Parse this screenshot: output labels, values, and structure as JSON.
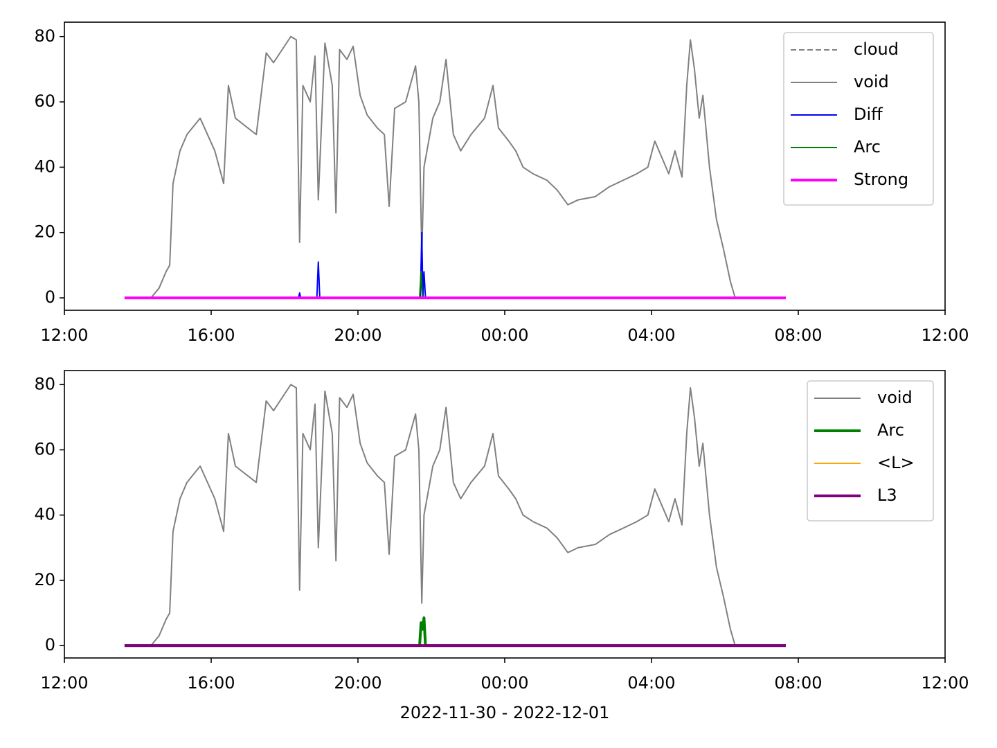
{
  "chart_data": [
    {
      "type": "line",
      "xlim": [
        12,
        36
      ],
      "ylim": [
        -3.8,
        84.4
      ],
      "xticks": [
        {
          "value": 12,
          "label": "12:00"
        },
        {
          "value": 16,
          "label": "16:00"
        },
        {
          "value": 20,
          "label": "20:00"
        },
        {
          "value": 24,
          "label": "00:00"
        },
        {
          "value": 28,
          "label": "04:00"
        },
        {
          "value": 32,
          "label": "08:00"
        },
        {
          "value": 36,
          "label": "12:00"
        }
      ],
      "yticks": [
        0,
        20,
        40,
        60,
        80
      ],
      "legend": "upper right",
      "series": [
        {
          "name": "cloud",
          "color": "#808080",
          "dash": true,
          "linewidth": 2,
          "x": [],
          "values": []
        },
        {
          "name": "void",
          "color": "#808080",
          "dash": false,
          "linewidth": 2,
          "x": [
            14.36,
            14.58,
            14.77,
            14.87,
            14.96,
            15.15,
            15.34,
            15.7,
            16.1,
            16.34,
            16.47,
            16.66,
            17.23,
            17.5,
            17.7,
            18.17,
            18.32,
            18.41,
            18.5,
            18.7,
            18.83,
            18.92,
            19.1,
            19.3,
            19.4,
            19.5,
            19.7,
            19.87,
            20.06,
            20.25,
            20.53,
            20.72,
            20.85,
            21.0,
            21.3,
            21.57,
            21.66,
            21.74,
            21.8,
            22.04,
            22.23,
            22.4,
            22.6,
            22.8,
            23.08,
            23.45,
            23.68,
            23.83,
            24.11,
            24.3,
            24.5,
            24.77,
            25.15,
            25.43,
            25.72,
            26.0,
            26.47,
            26.85,
            27.23,
            27.6,
            27.9,
            28.09,
            28.28,
            28.47,
            28.64,
            28.83,
            28.96,
            29.06,
            29.17,
            29.3,
            29.4,
            29.58,
            29.77,
            29.96,
            30.15,
            30.28
          ],
          "values": [
            0,
            3,
            8,
            10,
            35,
            45,
            50,
            55,
            45,
            35,
            65,
            55,
            50,
            75,
            72,
            80,
            79,
            17,
            65,
            60,
            74,
            30,
            78,
            65,
            26,
            76,
            73,
            77,
            62,
            56,
            52,
            50,
            28,
            58,
            60,
            71,
            60,
            13,
            40,
            55,
            60,
            73,
            50,
            45,
            50,
            55,
            65,
            52,
            48,
            45,
            40,
            38,
            36,
            33,
            28.5,
            30,
            31,
            34,
            36,
            38,
            40,
            48,
            43,
            38,
            45,
            37,
            65,
            79,
            70,
            55,
            62,
            40,
            24,
            15,
            5,
            0
          ]
        },
        {
          "name": "Diff",
          "color": "#0000ff",
          "dash": false,
          "linewidth": 2,
          "x": [
            13.64,
            18.38,
            18.41,
            18.44,
            18.88,
            18.92,
            18.96,
            21.7,
            21.74,
            21.77,
            21.8,
            21.84,
            31.66
          ],
          "values": [
            0,
            0,
            1.5,
            0,
            0,
            11,
            0,
            0,
            20,
            0,
            8,
            0,
            0
          ]
        },
        {
          "name": "Arc",
          "color": "#008000",
          "dash": false,
          "linewidth": 2,
          "x": [
            13.64,
            21.68,
            21.72,
            21.76,
            31.66
          ],
          "values": [
            0,
            0,
            8,
            0,
            0
          ]
        },
        {
          "name": "Strong",
          "color": "#ff00ff",
          "dash": false,
          "linewidth": 4,
          "x": [
            13.64,
            31.66
          ],
          "values": [
            0,
            0
          ]
        }
      ]
    },
    {
      "type": "line",
      "xlim": [
        12,
        36
      ],
      "ylim": [
        -3.8,
        84.3
      ],
      "xticks": [
        {
          "value": 12,
          "label": "12:00"
        },
        {
          "value": 16,
          "label": "16:00"
        },
        {
          "value": 20,
          "label": "20:00"
        },
        {
          "value": 24,
          "label": "00:00"
        },
        {
          "value": 28,
          "label": "04:00"
        },
        {
          "value": 32,
          "label": "08:00"
        },
        {
          "value": 36,
          "label": "12:00"
        }
      ],
      "yticks": [
        0,
        20,
        40,
        60,
        80
      ],
      "x_label": "2022-11-30 - 2022-12-01",
      "legend": "upper right",
      "series": [
        {
          "name": "void",
          "color": "#808080",
          "dash": false,
          "linewidth": 2,
          "x": [
            14.36,
            14.58,
            14.77,
            14.87,
            14.96,
            15.15,
            15.34,
            15.7,
            16.1,
            16.34,
            16.47,
            16.66,
            17.23,
            17.5,
            17.7,
            18.17,
            18.32,
            18.41,
            18.5,
            18.7,
            18.83,
            18.92,
            19.1,
            19.3,
            19.4,
            19.5,
            19.7,
            19.87,
            20.06,
            20.25,
            20.53,
            20.72,
            20.85,
            21.0,
            21.3,
            21.57,
            21.66,
            21.74,
            21.8,
            22.04,
            22.23,
            22.4,
            22.6,
            22.8,
            23.08,
            23.45,
            23.68,
            23.83,
            24.11,
            24.3,
            24.5,
            24.77,
            25.15,
            25.43,
            25.72,
            26.0,
            26.47,
            26.85,
            27.23,
            27.6,
            27.9,
            28.09,
            28.28,
            28.47,
            28.64,
            28.83,
            28.96,
            29.06,
            29.17,
            29.3,
            29.4,
            29.58,
            29.77,
            29.96,
            30.15,
            30.28
          ],
          "values": [
            0,
            3,
            8,
            10,
            35,
            45,
            50,
            55,
            45,
            35,
            65,
            55,
            50,
            75,
            72,
            80,
            79,
            17,
            65,
            60,
            74,
            30,
            78,
            65,
            26,
            76,
            73,
            77,
            62,
            56,
            52,
            50,
            28,
            58,
            60,
            71,
            60,
            13,
            40,
            55,
            60,
            73,
            50,
            45,
            50,
            55,
            65,
            52,
            48,
            45,
            40,
            38,
            36,
            33,
            28.5,
            30,
            31,
            34,
            36,
            38,
            40,
            48,
            43,
            38,
            45,
            37,
            65,
            79,
            70,
            55,
            62,
            40,
            24,
            15,
            5,
            0
          ]
        },
        {
          "name": "Arc",
          "color": "#008000",
          "dash": false,
          "linewidth": 4,
          "x": [
            13.64,
            21.68,
            21.72,
            21.76,
            21.8,
            21.84,
            31.66
          ],
          "values": [
            0,
            0,
            7,
            5,
            8.5,
            0,
            0
          ]
        },
        {
          "name": "<L>",
          "color": "#ffa500",
          "dash": false,
          "linewidth": 2,
          "x": [
            13.64,
            31.66
          ],
          "values": [
            0,
            0
          ]
        },
        {
          "name": "L3",
          "color": "#800080",
          "dash": false,
          "linewidth": 4,
          "x": [
            13.64,
            31.66
          ],
          "values": [
            0,
            0
          ]
        }
      ]
    }
  ]
}
